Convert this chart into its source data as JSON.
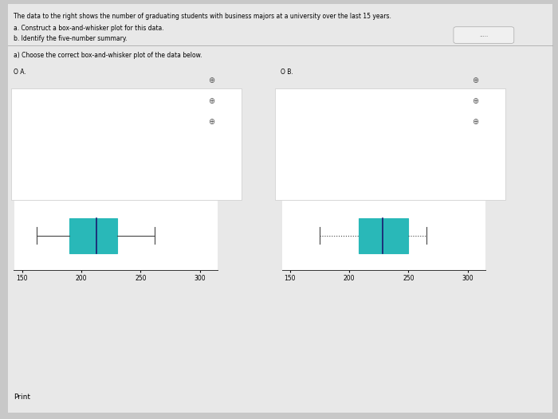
{
  "title_text": "The data to the right shows the number of graduating students with business majors at a university over the last 15 years.",
  "subtitle_a": "a. Construct a box-and-whisker plot for this data.",
  "subtitle_b": "b. Identify the five-number summary.",
  "question_text": "a) Choose the correct box-and-whisker plot of the data below.",
  "option_a_label": "O A.",
  "option_b_label": "O B.",
  "bg_color": "#c8c8c8",
  "page_color": "#e8e8e8",
  "white_bg": "#ffffff",
  "box_color": "#29b8b8",
  "median_color": "#1a1a6e",
  "whisker_color": "#444444",
  "axis_color": "#333333",
  "dots_color": "#888888",
  "plot_a": {
    "min_val": 162,
    "q1": 190,
    "median": 213,
    "q3": 230,
    "max_val": 262,
    "axis_min": 143,
    "axis_max": 315,
    "axis_ticks": [
      150,
      200,
      250,
      300
    ],
    "whisker_style": "solid"
  },
  "plot_b": {
    "min_val": 175,
    "q1": 208,
    "median": 228,
    "q3": 250,
    "max_val": 265,
    "axis_min": 143,
    "axis_max": 315,
    "axis_ticks": [
      150,
      200,
      250,
      300
    ],
    "whisker_style": "dotted"
  },
  "print_text": "Print"
}
